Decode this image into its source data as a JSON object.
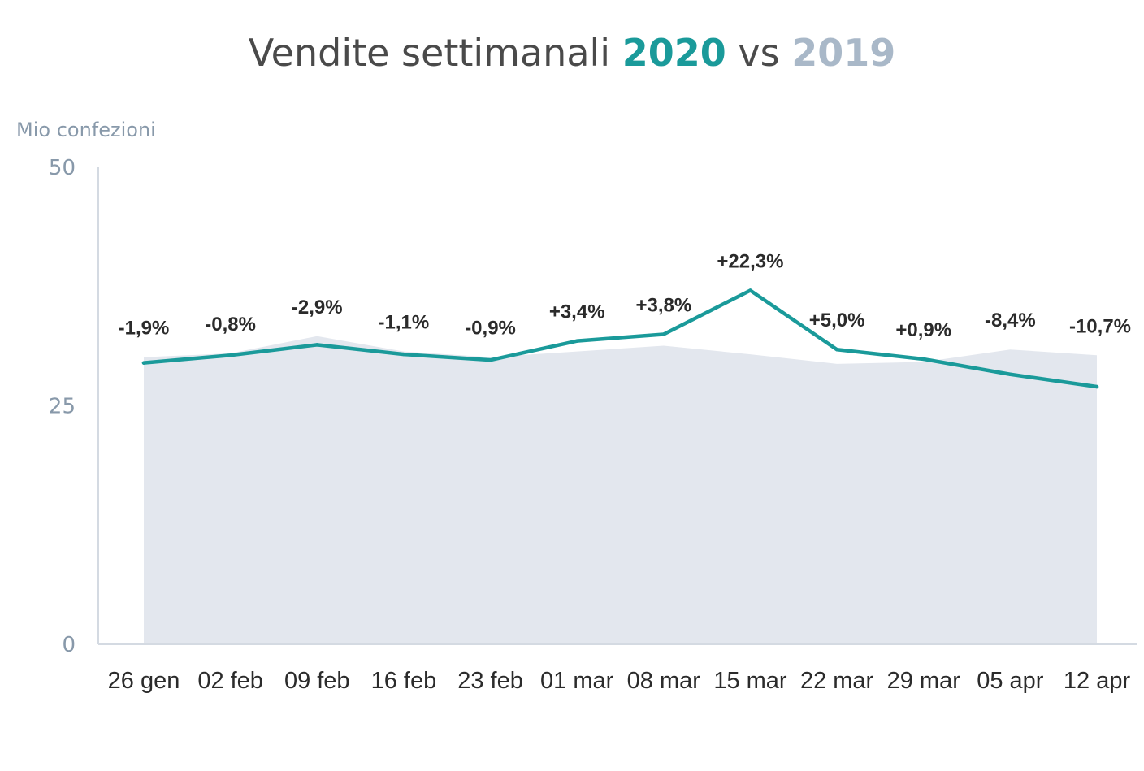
{
  "title": {
    "prefix": "Vendite settimanali",
    "year_a": "2020",
    "sep": "vs",
    "year_b": "2019"
  },
  "colors": {
    "series_2020": "#1a9a9a",
    "series_2019": "#e3e7ee",
    "axis": "#d4dae2",
    "text": "#2b2b2b",
    "muted": "#8899aa"
  },
  "chart_data": {
    "type": "line",
    "title": "Vendite settimanali 2020 vs 2019",
    "ylabel": "Mio confezioni",
    "ylim": [
      0,
      50
    ],
    "yticks": [
      0,
      25,
      50
    ],
    "grid": false,
    "categories": [
      "26 gen",
      "02 feb",
      "09 feb",
      "16 feb",
      "23 feb",
      "01 mar",
      "08 mar",
      "15 mar",
      "22 mar",
      "29 mar",
      "05 apr",
      "12 apr"
    ],
    "series": [
      {
        "name": "2020",
        "style": "line",
        "values": [
          29.5,
          30.3,
          31.4,
          30.4,
          29.8,
          31.8,
          32.5,
          37.1,
          30.9,
          29.9,
          28.3,
          27.0
        ]
      },
      {
        "name": "2019",
        "style": "area",
        "values": [
          30.1,
          30.5,
          32.3,
          30.7,
          30.1,
          30.7,
          31.3,
          30.4,
          29.4,
          29.6,
          30.9,
          30.3
        ]
      }
    ],
    "data_labels": [
      "-1,9%",
      "-0,8%",
      "-2,9%",
      "-1,1%",
      "-0,9%",
      "+3,4%",
      "+3,8%",
      "+22,3%",
      "+5,0%",
      "+0,9%",
      "-8,4%",
      "-10,7%"
    ]
  }
}
